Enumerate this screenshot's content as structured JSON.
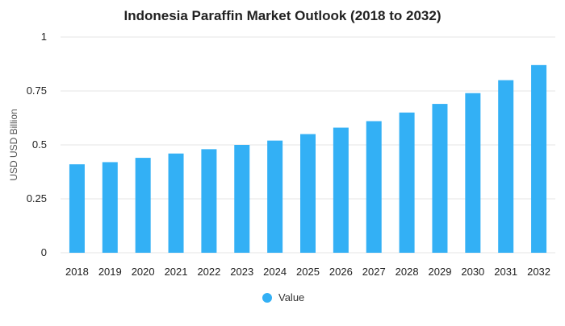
{
  "chart_data": {
    "type": "bar",
    "title": "Indonesia Paraffin Market Outlook (2018 to 2032)",
    "xlabel": "",
    "ylabel": "USD USD Billion",
    "categories": [
      "2018",
      "2019",
      "2020",
      "2021",
      "2022",
      "2023",
      "2024",
      "2025",
      "2026",
      "2027",
      "2028",
      "2029",
      "2030",
      "2031",
      "2032"
    ],
    "series": [
      {
        "name": "Value",
        "values": [
          0.41,
          0.42,
          0.44,
          0.46,
          0.48,
          0.5,
          0.52,
          0.55,
          0.58,
          0.61,
          0.65,
          0.69,
          0.74,
          0.8,
          0.87
        ]
      }
    ],
    "ylim": [
      0,
      1
    ],
    "yticks": [
      "0",
      "0.25",
      "0.5",
      "0.75",
      "1"
    ],
    "ytick_values": [
      0,
      0.25,
      0.5,
      0.75,
      1
    ],
    "grid": true,
    "legend_position": "bottom",
    "colors": {
      "bar": "#33b0f5",
      "grid": "#e6e6e6",
      "text": "#222222"
    }
  }
}
